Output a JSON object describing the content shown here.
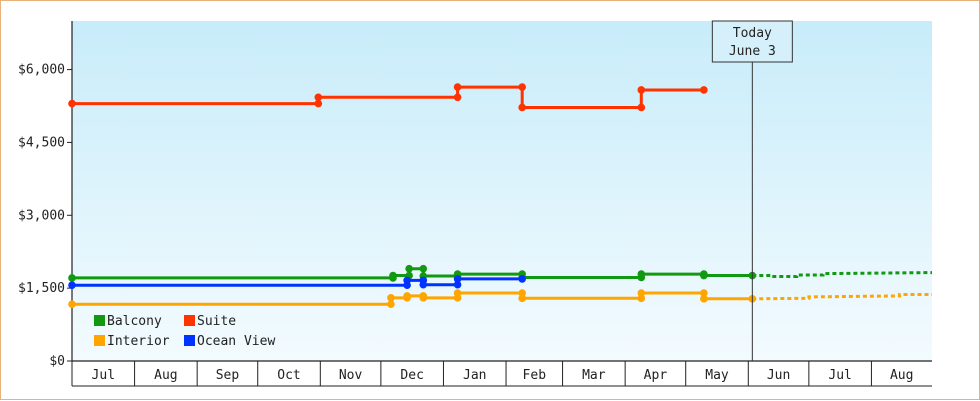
{
  "chart_data": {
    "type": "line",
    "title": "",
    "xlabel": "",
    "ylabel": "",
    "ylim": [
      0,
      7000
    ],
    "yticks": [
      {
        "value": 0,
        "label": "$0"
      },
      {
        "value": 1500,
        "label": "$1,500"
      },
      {
        "value": 3000,
        "label": "$3,000"
      },
      {
        "value": 4500,
        "label": "$4,500"
      },
      {
        "value": 6000,
        "label": "$6,000"
      }
    ],
    "x_start": "2024-07-01",
    "x_end": "2025-08-31",
    "months": [
      {
        "label": "Jul",
        "start": "2024-07-01"
      },
      {
        "label": "Aug",
        "start": "2024-08-01"
      },
      {
        "label": "Sep",
        "start": "2024-09-01"
      },
      {
        "label": "Oct",
        "start": "2024-10-01"
      },
      {
        "label": "Nov",
        "start": "2024-11-01"
      },
      {
        "label": "Dec",
        "start": "2024-12-01"
      },
      {
        "label": "Jan",
        "start": "2025-01-01"
      },
      {
        "label": "Feb",
        "start": "2025-02-01"
      },
      {
        "label": "Mar",
        "start": "2025-03-01"
      },
      {
        "label": "Apr",
        "start": "2025-04-01"
      },
      {
        "label": "May",
        "start": "2025-05-01"
      },
      {
        "label": "Jun",
        "start": "2025-06-01"
      },
      {
        "label": "Jul",
        "start": "2025-07-01"
      },
      {
        "label": "Aug",
        "start": "2025-08-01"
      }
    ],
    "today": {
      "date": "2025-06-03",
      "label_line1": "Today",
      "label_line2": "June 3"
    },
    "grid": false,
    "legend_position": "bottom-left",
    "series": [
      {
        "name": "Balcony",
        "color": "#119911",
        "points": [
          [
            "2024-07-01",
            1710
          ],
          [
            "2024-12-07",
            1710
          ],
          [
            "2024-12-07",
            1760
          ],
          [
            "2024-12-15",
            1760
          ],
          [
            "2024-12-15",
            1900
          ],
          [
            "2024-12-22",
            1900
          ],
          [
            "2024-12-22",
            1750
          ],
          [
            "2025-01-08",
            1750
          ],
          [
            "2025-01-08",
            1790
          ],
          [
            "2025-02-09",
            1790
          ],
          [
            "2025-02-09",
            1720
          ],
          [
            "2025-04-09",
            1720
          ],
          [
            "2025-04-09",
            1790
          ],
          [
            "2025-05-10",
            1790
          ],
          [
            "2025-05-10",
            1760
          ],
          [
            "2025-06-03",
            1760
          ]
        ],
        "forecast": [
          [
            "2025-06-03",
            1760
          ],
          [
            "2025-06-12",
            1760
          ],
          [
            "2025-06-12",
            1740
          ],
          [
            "2025-06-25",
            1740
          ],
          [
            "2025-06-25",
            1770
          ],
          [
            "2025-07-08",
            1770
          ],
          [
            "2025-07-08",
            1800
          ],
          [
            "2025-08-31",
            1820
          ]
        ]
      },
      {
        "name": "Suite",
        "color": "#ff3300",
        "points": [
          [
            "2024-07-01",
            5300
          ],
          [
            "2024-10-31",
            5300
          ],
          [
            "2024-10-31",
            5430
          ],
          [
            "2025-01-08",
            5430
          ],
          [
            "2025-01-08",
            5640
          ],
          [
            "2025-02-09",
            5640
          ],
          [
            "2025-02-09",
            5220
          ],
          [
            "2025-04-09",
            5220
          ],
          [
            "2025-04-09",
            5580
          ],
          [
            "2025-05-10",
            5580
          ]
        ],
        "forecast": []
      },
      {
        "name": "Interior",
        "color": "#ffa500",
        "points": [
          [
            "2024-07-01",
            1170
          ],
          [
            "2024-12-06",
            1170
          ],
          [
            "2024-12-06",
            1300
          ],
          [
            "2024-12-14",
            1300
          ],
          [
            "2024-12-14",
            1340
          ],
          [
            "2024-12-22",
            1340
          ],
          [
            "2024-12-22",
            1300
          ],
          [
            "2025-01-08",
            1300
          ],
          [
            "2025-01-08",
            1400
          ],
          [
            "2025-02-09",
            1400
          ],
          [
            "2025-02-09",
            1290
          ],
          [
            "2025-04-09",
            1290
          ],
          [
            "2025-04-09",
            1400
          ],
          [
            "2025-05-10",
            1400
          ],
          [
            "2025-05-10",
            1280
          ],
          [
            "2025-06-03",
            1280
          ]
        ],
        "forecast": [
          [
            "2025-06-03",
            1280
          ],
          [
            "2025-07-01",
            1290
          ],
          [
            "2025-07-01",
            1320
          ],
          [
            "2025-08-15",
            1340
          ],
          [
            "2025-08-15",
            1370
          ],
          [
            "2025-08-31",
            1370
          ]
        ]
      },
      {
        "name": "Ocean View",
        "color": "#0033ff",
        "points": [
          [
            "2024-07-01",
            1560
          ],
          [
            "2024-12-14",
            1560
          ],
          [
            "2024-12-14",
            1660
          ],
          [
            "2024-12-22",
            1660
          ],
          [
            "2024-12-22",
            1570
          ],
          [
            "2025-01-08",
            1570
          ],
          [
            "2025-01-08",
            1690
          ],
          [
            "2025-02-09",
            1690
          ]
        ],
        "forecast": []
      }
    ],
    "legend": [
      {
        "name": "Balcony",
        "color": "#119911"
      },
      {
        "name": "Suite",
        "color": "#ff3300"
      },
      {
        "name": "Interior",
        "color": "#ffa500"
      },
      {
        "name": "Ocean View",
        "color": "#0033ff"
      }
    ]
  }
}
